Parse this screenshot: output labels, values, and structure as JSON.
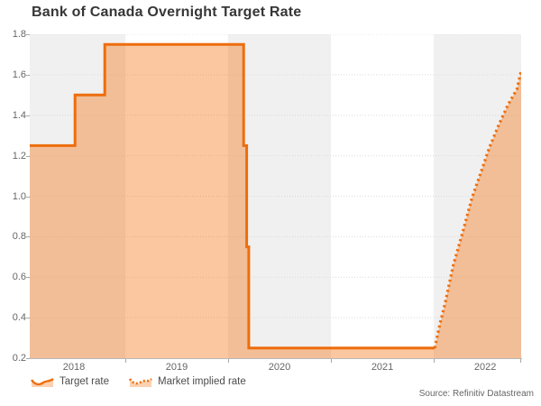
{
  "title": "Bank of Canada Overnight Target Rate",
  "source": "Source: Refinitiv Datastream",
  "legend": {
    "items": [
      {
        "label": "Target rate",
        "style": "solid"
      },
      {
        "label": "Market implied rate",
        "style": "dotted"
      }
    ]
  },
  "colors": {
    "line": "#ee6d0c",
    "fill": "rgba(244,122,32,0.42)",
    "legend_fill": "rgba(244,122,32,0.35)",
    "band_gray": "#f0f0f0",
    "band_white": "#ffffff",
    "grid": "#d9d9d9"
  },
  "chart_data": {
    "type": "line",
    "title": "Bank of Canada Overnight Target Rate",
    "xlabel": "",
    "ylabel": "",
    "ylim": [
      0.2,
      1.8
    ],
    "y_ticks": [
      0.2,
      0.4,
      0.6,
      0.8,
      1.0,
      1.2,
      1.4,
      1.6,
      1.8
    ],
    "x_range": [
      2018.07,
      2022.85
    ],
    "x_tick_years": [
      2018,
      2019,
      2020,
      2021,
      2022
    ],
    "x_tick_labels": [
      "2018",
      "2019",
      "2020",
      "2021",
      "2022"
    ],
    "year_boundaries": [
      2019,
      2020,
      2021,
      2022
    ],
    "grid": "dotted-horizontal",
    "legend_position": "bottom-left",
    "background_bands": "alternating gray/white per year starting gray",
    "series": [
      {
        "name": "Target rate",
        "style": "solid-step-with-area",
        "points": [
          [
            2018.07,
            1.25
          ],
          [
            2018.51,
            1.25
          ],
          [
            2018.51,
            1.5
          ],
          [
            2018.8,
            1.5
          ],
          [
            2018.8,
            1.75
          ],
          [
            2020.15,
            1.75
          ],
          [
            2020.15,
            1.25
          ],
          [
            2020.18,
            1.25
          ],
          [
            2020.18,
            0.75
          ],
          [
            2020.2,
            0.75
          ],
          [
            2020.2,
            0.25
          ],
          [
            2022.01,
            0.25
          ]
        ]
      },
      {
        "name": "Market implied rate",
        "style": "dotted-with-area",
        "points": [
          [
            2022.01,
            0.25
          ],
          [
            2022.06,
            0.37
          ],
          [
            2022.11,
            0.47
          ],
          [
            2022.19,
            0.66
          ],
          [
            2022.28,
            0.82
          ],
          [
            2022.37,
            0.99
          ],
          [
            2022.46,
            1.12
          ],
          [
            2022.54,
            1.24
          ],
          [
            2022.63,
            1.35
          ],
          [
            2022.72,
            1.45
          ],
          [
            2022.81,
            1.53
          ],
          [
            2022.85,
            1.62
          ]
        ]
      }
    ]
  }
}
